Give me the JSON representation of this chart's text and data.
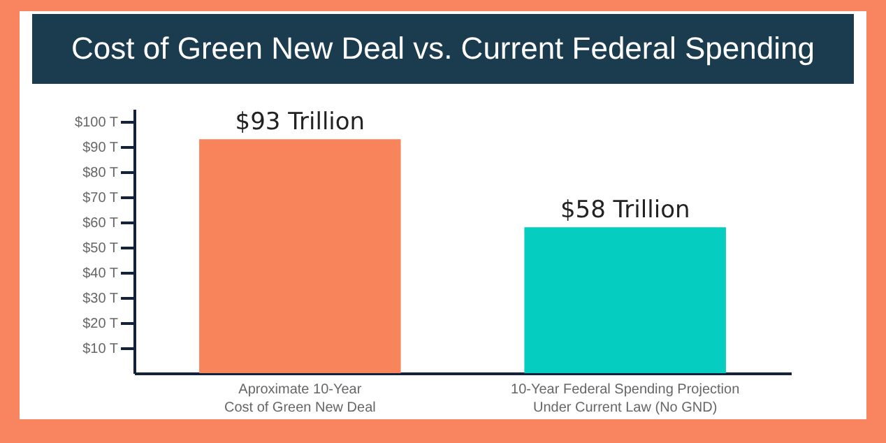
{
  "chart_data": {
    "type": "bar",
    "title": "Cost of Green New Deal vs. Current Federal Spending",
    "categories": [
      "Aproximate 10-Year Cost of Green New Deal",
      "10-Year Federal Spending Projection Under Current Law (No GND)"
    ],
    "values": [
      93,
      58
    ],
    "colors": [
      "#f7845a",
      "#05cdbf"
    ],
    "value_labels": [
      "$93 Trillion",
      "$58 Trillion"
    ],
    "ylim": [
      0,
      105
    ],
    "yticks": [
      {
        "value": 10,
        "label": "$10 T"
      },
      {
        "value": 20,
        "label": "$20 T"
      },
      {
        "value": 30,
        "label": "$30 T"
      },
      {
        "value": 40,
        "label": "$40 T"
      },
      {
        "value": 50,
        "label": "$50 T"
      },
      {
        "value": 60,
        "label": "$60 T"
      },
      {
        "value": 70,
        "label": "$70 T"
      },
      {
        "value": 80,
        "label": "$80 T"
      },
      {
        "value": 90,
        "label": "$90 T"
      },
      {
        "value": 100,
        "label": "$100 T"
      }
    ],
    "grid": false
  }
}
